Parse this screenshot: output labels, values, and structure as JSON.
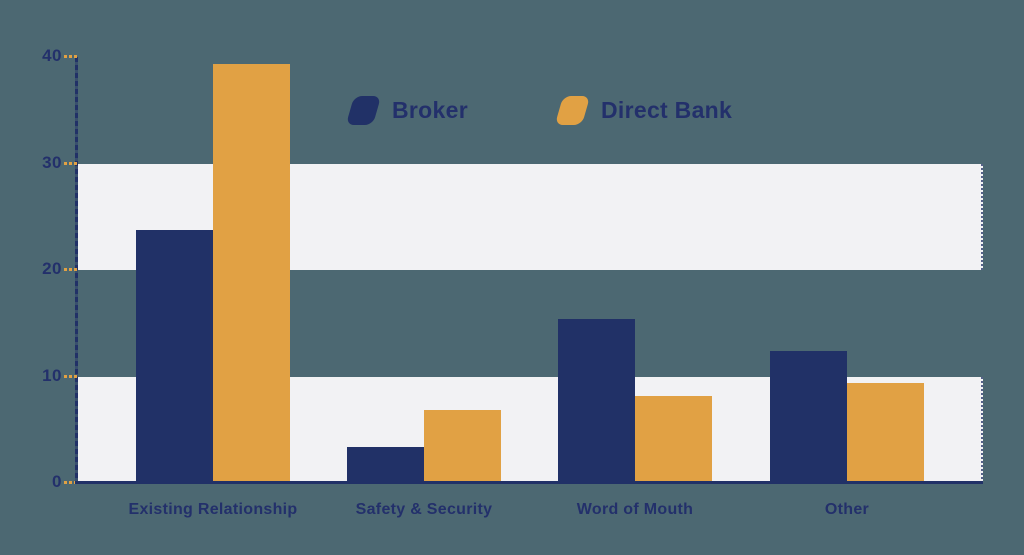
{
  "chart_data": {
    "type": "bar",
    "title": "",
    "categories": [
      "Existing Relationship",
      "Safety & Security",
      "Word of Mouth",
      "Other"
    ],
    "series": [
      {
        "name": "Broker",
        "color": "#213167",
        "values": [
          23.8,
          3.4,
          15.4,
          12.4
        ]
      },
      {
        "name": "Direct Bank",
        "color": "#e1a144",
        "values": [
          39.3,
          6.9,
          8.2,
          9.4
        ]
      }
    ],
    "y_ticks": [
      0,
      10,
      20,
      30,
      40
    ],
    "ylim": [
      0,
      40
    ],
    "xlabel": "",
    "ylabel": "",
    "grid_bands": [
      [
        0,
        10
      ],
      [
        20,
        30
      ]
    ],
    "grid": "alternating horizontal bands",
    "legend_position": "top-center"
  },
  "colors": {
    "background": "#4c6872",
    "band": "#f2f2f4",
    "axis": "#213167",
    "tick_mark": "#e1a144",
    "text": "#23306b",
    "broker_bar": "#213167",
    "direct_bank_bar": "#e1a144"
  }
}
